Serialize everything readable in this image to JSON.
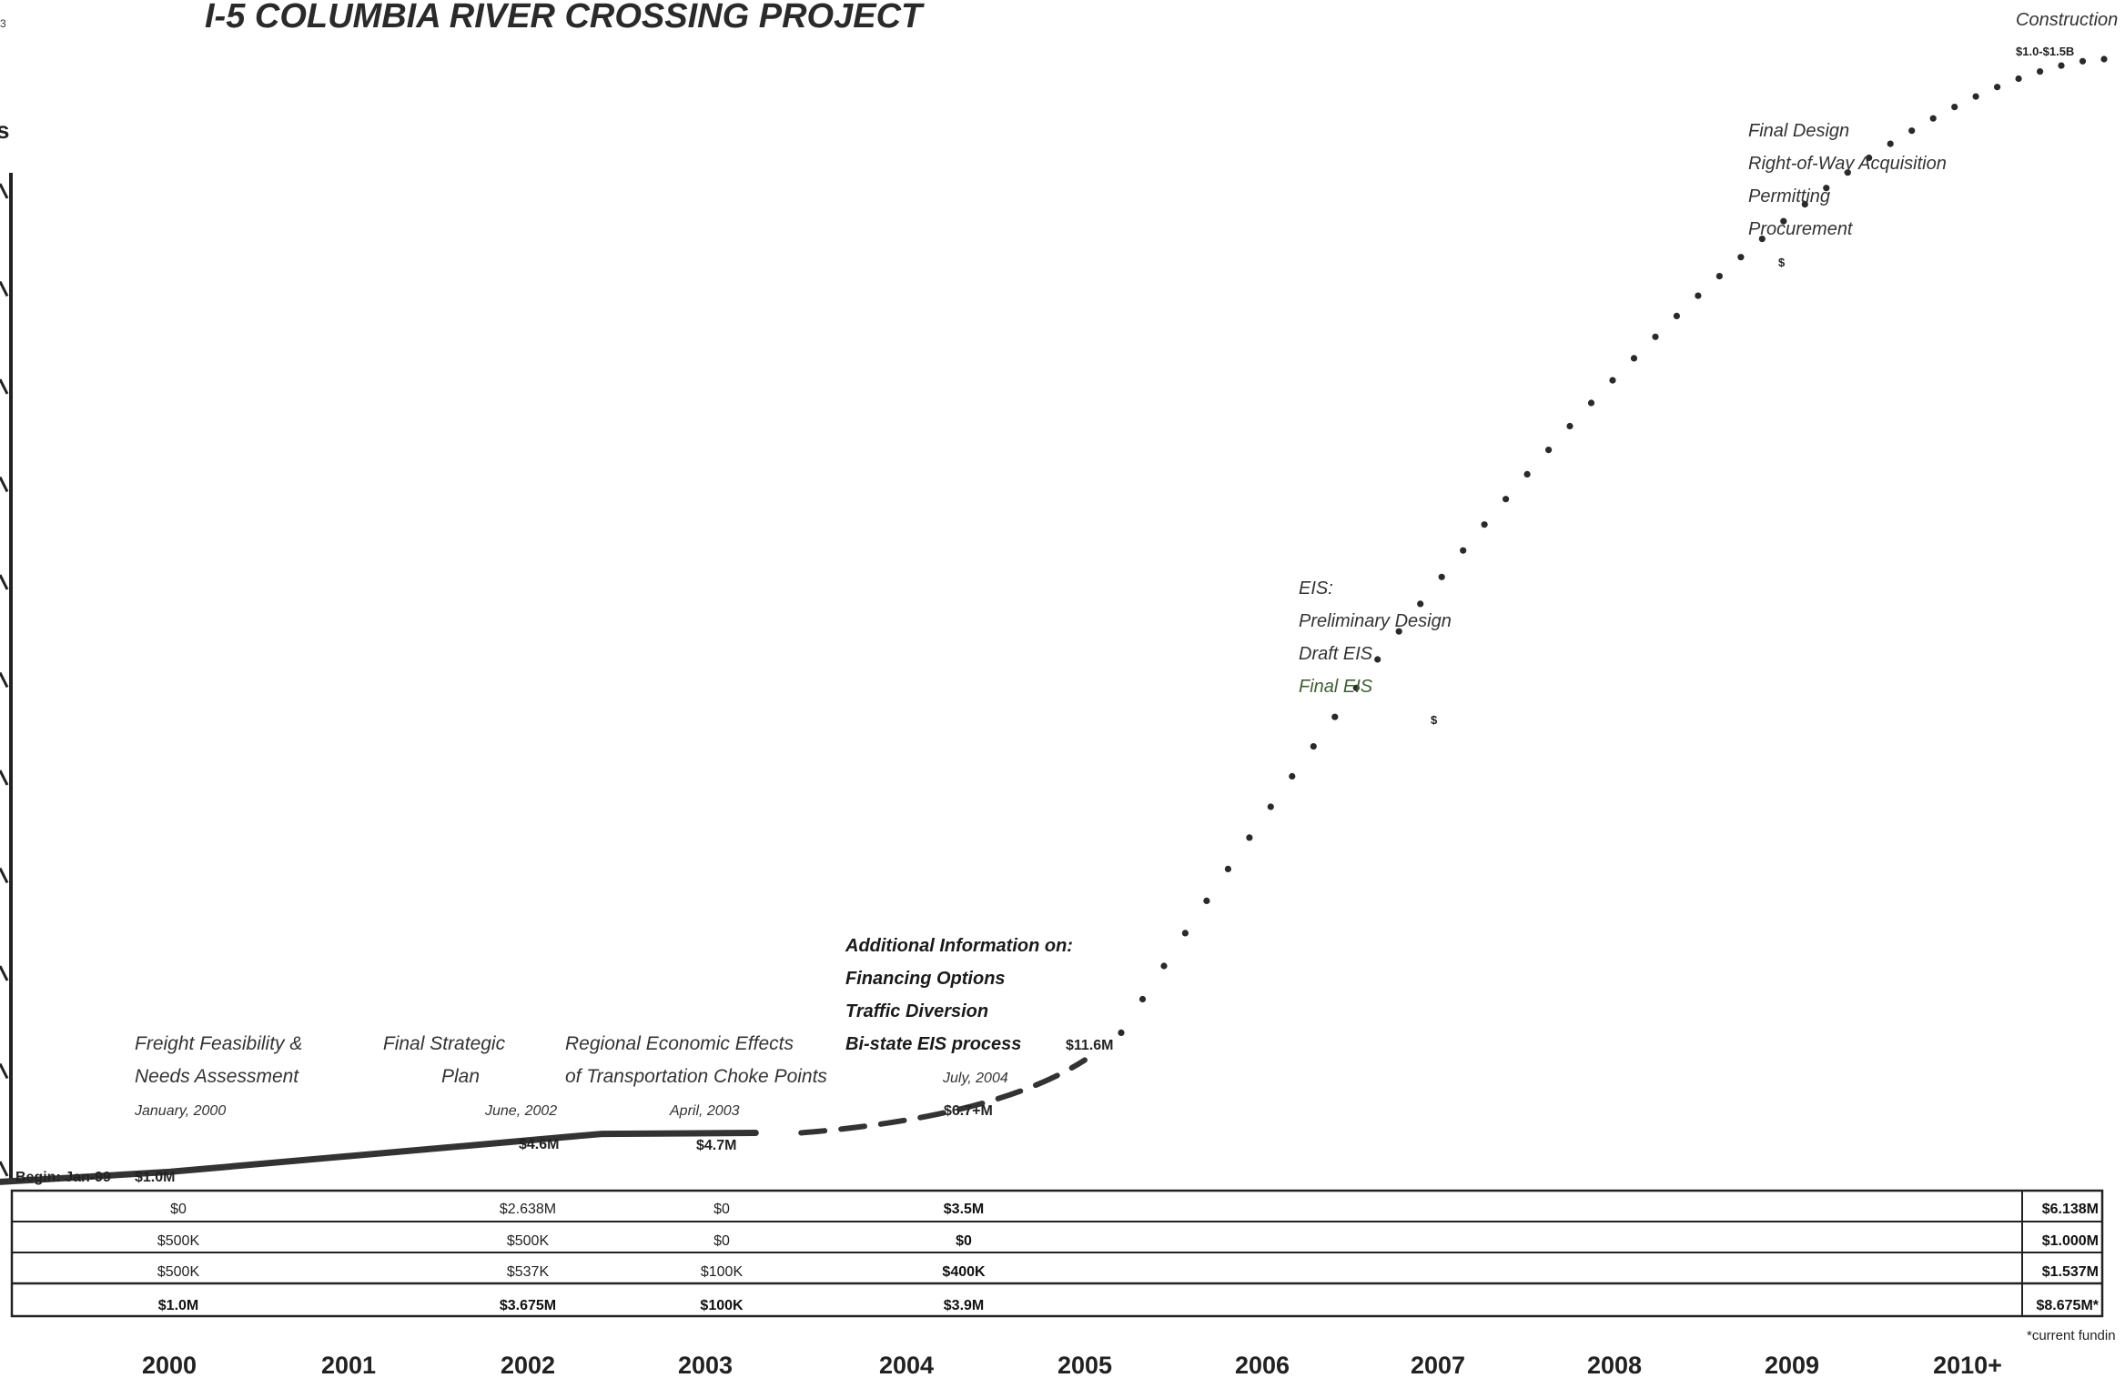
{
  "page": {
    "corner_mark": "3",
    "side_mark": "s"
  },
  "chart_data": {
    "type": "line",
    "title": "I-5 COLUMBIA RIVER CROSSING PROJECT",
    "x_categories": [
      "2000",
      "2001",
      "2002",
      "2003",
      "2004",
      "2005",
      "2006",
      "2007",
      "2008",
      "2009",
      "2010+"
    ],
    "begin_label": "Begin:  Jan-99",
    "series": [
      {
        "style": "solid",
        "points": [
          {
            "x": "1999-01",
            "y": 0.0
          },
          {
            "x": "2000-01",
            "y": 1.0
          },
          {
            "x": "2002-06",
            "y": 4.6
          },
          {
            "x": "2003-04",
            "y": 4.7
          }
        ]
      },
      {
        "style": "dashed",
        "points": [
          {
            "x": "2003-04",
            "y": 4.7
          },
          {
            "x": "2004-07",
            "y": 6.7
          },
          {
            "x": "2005-01",
            "y": 11.6
          }
        ]
      },
      {
        "style": "dotted",
        "points": [
          {
            "x": "2005-01",
            "y": 11.6
          },
          {
            "x": "2010-09",
            "y": 1250
          }
        ]
      }
    ],
    "value_labels": [
      "$1.0M",
      "$4.6M",
      "$4.7M",
      "$6.7+M",
      "$11.6M",
      "$",
      "$",
      "$1.0-$1.5B"
    ],
    "annotations": [
      {
        "lines": [
          "Freight Feasibility &",
          "Needs Assessment"
        ],
        "date": "January, 2000"
      },
      {
        "lines": [
          "Final Strategic",
          "Plan"
        ],
        "date": "June, 2002"
      },
      {
        "lines": [
          "Regional Economic Effects",
          "of Transportation Choke Points"
        ],
        "date": "April, 2003"
      },
      {
        "lines": [
          "Additional Information on:",
          "Financing Options",
          "Traffic Diversion",
          "Bi-state EIS process"
        ],
        "date": "July, 2004"
      },
      {
        "lines": [
          "EIS:",
          "Preliminary Design",
          "Draft EIS",
          "Final EIS"
        ]
      },
      {
        "lines": [
          "Final Design",
          "Right-of-Way Acquisition",
          "Permitting",
          "Procurement"
        ]
      },
      {
        "lines": [
          "Construction"
        ]
      }
    ],
    "table": {
      "rows": [
        {
          "cells": [
            "$0",
            "$2.638M",
            "$0",
            "$3.5M"
          ],
          "total": "$6.138M"
        },
        {
          "cells": [
            "$500K",
            "$500K",
            "$0",
            "$0"
          ],
          "total": "$1.000M"
        },
        {
          "cells": [
            "$500K",
            "$537K",
            "$100K",
            "$400K"
          ],
          "total": "$1.537M"
        },
        {
          "cells": [
            "$1.0M",
            "$3.675M",
            "$100K",
            "$3.9M"
          ],
          "total": "$8.675M*"
        }
      ],
      "footnote": "*current fundin"
    },
    "grid": false,
    "legend": "none"
  }
}
